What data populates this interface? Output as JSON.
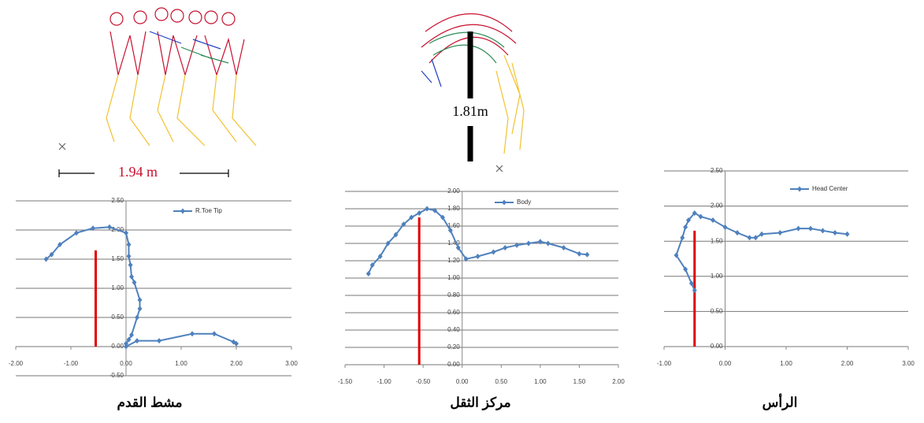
{
  "chart_data": [
    {
      "type": "line",
      "caption": "مشط القدم",
      "annotation": "1.94 m",
      "series": [
        {
          "name": "R.Toe Tip",
          "color": "#4f81bd",
          "x": [
            -1.45,
            -1.35,
            -1.2,
            -0.9,
            -0.6,
            -0.3,
            0.0,
            0.05,
            0.05,
            0.08,
            0.1,
            0.15,
            0.25,
            0.25,
            0.2,
            0.1,
            0.05,
            0.0,
            0.0,
            0.2,
            0.6,
            1.2,
            1.6,
            1.95,
            2.0
          ],
          "values": [
            1.5,
            1.58,
            1.75,
            1.95,
            2.03,
            2.05,
            1.95,
            1.75,
            1.55,
            1.4,
            1.2,
            1.1,
            0.8,
            0.65,
            0.5,
            0.2,
            0.12,
            0.05,
            0.0,
            0.1,
            0.1,
            0.22,
            0.22,
            0.08,
            0.05
          ]
        }
      ],
      "reference_line": {
        "x": -0.55,
        "y": [
          0,
          1.65
        ],
        "color": "#e00000"
      },
      "xlim": [
        -2,
        3
      ],
      "xticks": [
        {
          "value": -2,
          "label": "-2.00"
        },
        {
          "value": -1,
          "label": "-1.00"
        },
        {
          "value": 0,
          "label": "0.00"
        },
        {
          "value": 1,
          "label": "1.00"
        },
        {
          "value": 2,
          "label": "2.00"
        },
        {
          "value": 3,
          "label": "3.00"
        }
      ],
      "ylim": [
        -0.5,
        2.5
      ],
      "yticks": [
        {
          "value": -0.5,
          "label": "-0.50"
        },
        {
          "value": 0,
          "label": "0.00"
        },
        {
          "value": 0.5,
          "label": "0.50"
        },
        {
          "value": 1,
          "label": "1.00"
        },
        {
          "value": 1.5,
          "label": "1.50"
        },
        {
          "value": 2,
          "label": "2.00"
        },
        {
          "value": 2.5,
          "label": "2.50"
        }
      ],
      "grid": true
    },
    {
      "type": "line",
      "caption": "مركز الثقل",
      "annotation": "1.81m",
      "series": [
        {
          "name": "Body",
          "color": "#4f81bd",
          "x": [
            -1.2,
            -1.15,
            -1.05,
            -0.95,
            -0.85,
            -0.75,
            -0.65,
            -0.55,
            -0.45,
            -0.35,
            -0.25,
            -0.15,
            -0.05,
            0.05,
            0.2,
            0.4,
            0.55,
            0.7,
            0.85,
            1.0,
            1.1,
            1.3,
            1.5,
            1.6
          ],
          "values": [
            1.05,
            1.15,
            1.25,
            1.4,
            1.5,
            1.62,
            1.7,
            1.75,
            1.8,
            1.78,
            1.7,
            1.55,
            1.35,
            1.22,
            1.25,
            1.3,
            1.35,
            1.38,
            1.4,
            1.42,
            1.4,
            1.35,
            1.28,
            1.27
          ]
        }
      ],
      "reference_line": {
        "x": -0.55,
        "y": [
          0,
          1.7
        ],
        "color": "#e00000"
      },
      "xlim": [
        -1.5,
        2
      ],
      "xticks": [
        {
          "value": -1.5,
          "label": "-1.50"
        },
        {
          "value": -1,
          "label": "-1.00"
        },
        {
          "value": -0.5,
          "label": "-0.50"
        },
        {
          "value": 0,
          "label": "0.00"
        },
        {
          "value": 0.5,
          "label": "0.50"
        },
        {
          "value": 1,
          "label": "1.00"
        },
        {
          "value": 1.5,
          "label": "1.50"
        },
        {
          "value": 2,
          "label": "2.00"
        }
      ],
      "ylim": [
        0,
        2
      ],
      "yticks": [
        {
          "value": 0,
          "label": "0.00"
        },
        {
          "value": 0.2,
          "label": "0.20"
        },
        {
          "value": 0.4,
          "label": "0.40"
        },
        {
          "value": 0.6,
          "label": "0.60"
        },
        {
          "value": 0.8,
          "label": "0.80"
        },
        {
          "value": 1,
          "label": "1.00"
        },
        {
          "value": 1.2,
          "label": "1.20"
        },
        {
          "value": 1.4,
          "label": "1.40"
        },
        {
          "value": 1.6,
          "label": "1.60"
        },
        {
          "value": 1.8,
          "label": "1.80"
        },
        {
          "value": 2,
          "label": "2.00"
        }
      ],
      "grid": true
    },
    {
      "type": "line",
      "caption": "الرأس",
      "series": [
        {
          "name": "Head Center",
          "color": "#4f81bd",
          "x": [
            -0.5,
            -0.55,
            -0.65,
            -0.8,
            -0.7,
            -0.65,
            -0.6,
            -0.5,
            -0.4,
            -0.2,
            0.0,
            0.2,
            0.4,
            0.5,
            0.6,
            0.9,
            1.2,
            1.4,
            1.6,
            1.8,
            2.0
          ],
          "values": [
            0.8,
            0.9,
            1.1,
            1.3,
            1.55,
            1.7,
            1.8,
            1.9,
            1.85,
            1.8,
            1.7,
            1.62,
            1.55,
            1.55,
            1.6,
            1.62,
            1.68,
            1.68,
            1.65,
            1.62,
            1.6
          ]
        }
      ],
      "reference_line": {
        "x": -0.5,
        "y": [
          0,
          1.65
        ],
        "color": "#e00000"
      },
      "xlim": [
        -1,
        3
      ],
      "xticks": [
        {
          "value": -1,
          "label": "-1.00"
        },
        {
          "value": 0,
          "label": "0.00"
        },
        {
          "value": 1,
          "label": "1.00"
        },
        {
          "value": 2,
          "label": "2.00"
        },
        {
          "value": 3,
          "label": "3.00"
        }
      ],
      "ylim": [
        0,
        2.5
      ],
      "yticks": [
        {
          "value": 0,
          "label": "0.00"
        },
        {
          "value": 0.5,
          "label": "0.50"
        },
        {
          "value": 1,
          "label": "1.00"
        },
        {
          "value": 1.5,
          "label": "1.50"
        },
        {
          "value": 2,
          "label": "2.00"
        },
        {
          "value": 2.5,
          "label": "2.50"
        }
      ],
      "grid": true
    }
  ]
}
